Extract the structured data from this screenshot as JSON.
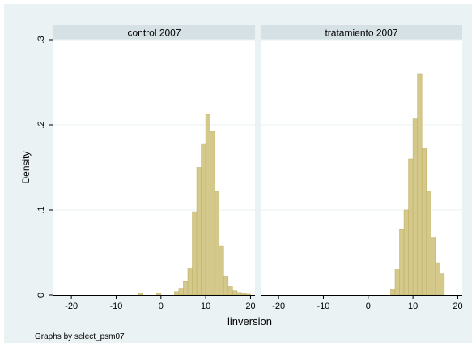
{
  "chart_data": {
    "type": "bar",
    "subtype": "histogram",
    "ylabel": "Density",
    "xlabel": "linversion",
    "note": "Graphs by select_psm07",
    "xlim": [
      -24,
      21
    ],
    "ylim": [
      0,
      0.3
    ],
    "xticks": [
      -20,
      -10,
      0,
      10,
      20
    ],
    "xtick_labels": [
      "-20",
      "-10",
      "0",
      "10",
      "20"
    ],
    "yticks": [
      0,
      0.1,
      0.2,
      0.3
    ],
    "ytick_labels": [
      "0",
      ".1",
      ".2",
      ".3"
    ],
    "bin_width": 1,
    "colors": {
      "plot_region_bg": "#eaf2f3",
      "panel_bg": "#ffffff",
      "facet_header_bg": "#d6e1e6",
      "bar_fill": "#d4c88a",
      "bar_stroke": "#c2b36a",
      "grid": "#eaf2f3"
    },
    "panels": [
      {
        "title": "control 2007",
        "bin_starts": [
          -5,
          -1,
          3,
          4,
          5,
          6,
          7,
          8,
          9,
          10,
          11,
          12,
          13,
          14,
          15,
          16,
          17,
          18,
          19
        ],
        "values": [
          0.002,
          0.002,
          0.004,
          0.008,
          0.016,
          0.032,
          0.098,
          0.15,
          0.178,
          0.212,
          0.192,
          0.122,
          0.058,
          0.022,
          0.01,
          0.005,
          0.003,
          0.002,
          0.001
        ]
      },
      {
        "title": "tratamiento 2007",
        "bin_starts": [
          5,
          6,
          7,
          8,
          9,
          10,
          11,
          12,
          13,
          14,
          15,
          16
        ],
        "values": [
          0.007,
          0.03,
          0.077,
          0.1,
          0.16,
          0.207,
          0.26,
          0.172,
          0.122,
          0.068,
          0.038,
          0.025
        ]
      }
    ]
  }
}
